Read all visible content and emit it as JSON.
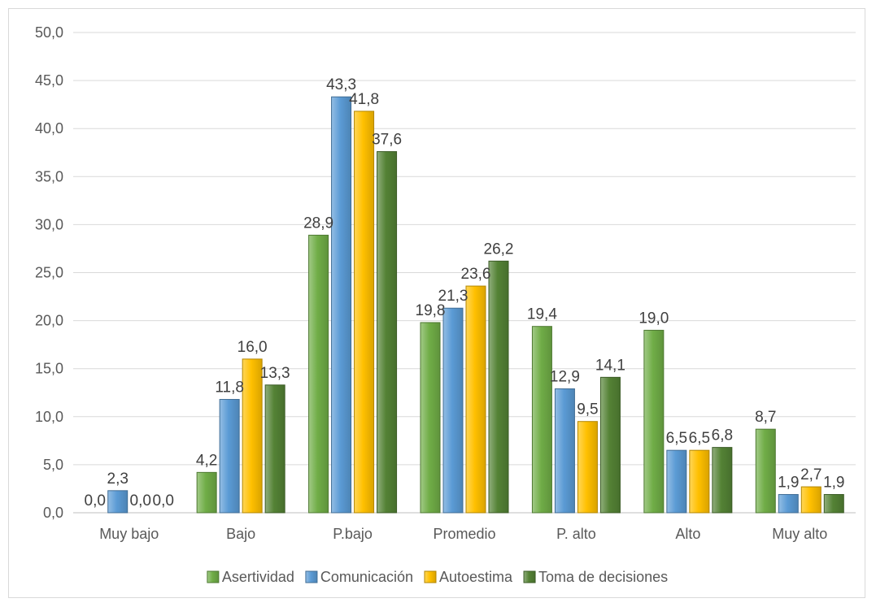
{
  "chart_data": {
    "type": "bar",
    "categories": [
      "Muy bajo",
      "Bajo",
      "P.bajo",
      "Promedio",
      "P. alto",
      "Alto",
      "Muy alto"
    ],
    "series": [
      {
        "name": "Asertividad",
        "values": [
          0.0,
          4.2,
          28.9,
          19.8,
          19.4,
          19.0,
          8.7
        ],
        "labels": [
          "0,0",
          "4,2",
          "28,9",
          "19,8",
          "19,4",
          "19,0",
          "8,7"
        ],
        "color": "#70ad47"
      },
      {
        "name": "Comunicación",
        "values": [
          2.3,
          11.8,
          43.3,
          21.3,
          12.9,
          6.5,
          1.9
        ],
        "labels": [
          "2,3",
          "11,8",
          "43,3",
          "21,3",
          "12,9",
          "6,5",
          "1,9"
        ],
        "color": "#5b9bd5"
      },
      {
        "name": "Autoestima",
        "values": [
          0.0,
          16.0,
          41.8,
          23.6,
          9.5,
          6.5,
          2.7
        ],
        "labels": [
          "0,0",
          "16,0",
          "41,8",
          "23,6",
          "9,5",
          "6,5",
          "2,7"
        ],
        "color": "#ffc000"
      },
      {
        "name": "Toma de decisiones",
        "values": [
          0.0,
          13.3,
          37.6,
          26.2,
          14.1,
          6.8,
          1.9
        ],
        "labels": [
          "0,0",
          "13,3",
          "37,6",
          "26,2",
          "14,1",
          "6,8",
          "1,9"
        ],
        "color": "#548235"
      }
    ],
    "ylim": [
      0,
      50
    ],
    "yticks": [
      "0,0",
      "5,0",
      "10,0",
      "15,0",
      "20,0",
      "25,0",
      "30,0",
      "35,0",
      "40,0",
      "45,0",
      "50,0"
    ],
    "grid": true,
    "legend_position": "bottom",
    "title": "",
    "xlabel": "",
    "ylabel": ""
  }
}
